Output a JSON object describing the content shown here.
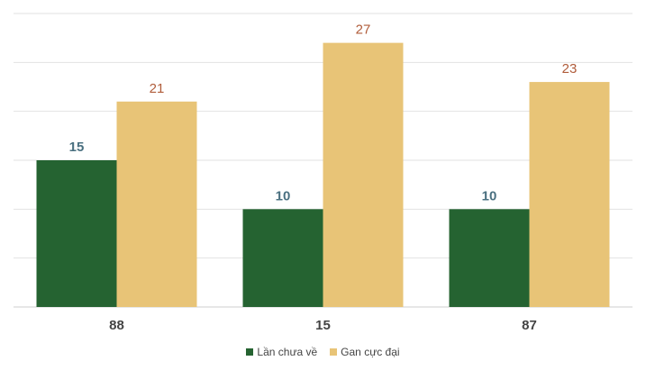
{
  "chart_data": {
    "type": "bar",
    "categories": [
      "88",
      "15",
      "87"
    ],
    "series": [
      {
        "name": "Lần chưa về",
        "values": [
          15,
          10,
          10
        ],
        "color": "#256331",
        "label_color": "#4a7080"
      },
      {
        "name": "Gan cực đại",
        "values": [
          21,
          27,
          23
        ],
        "color": "#e8c477",
        "label_color": "#b05c3a"
      }
    ],
    "title": "",
    "xlabel": "",
    "ylabel": "",
    "ylim": [
      0,
      30
    ],
    "grid": true,
    "legend_position": "bottom"
  }
}
